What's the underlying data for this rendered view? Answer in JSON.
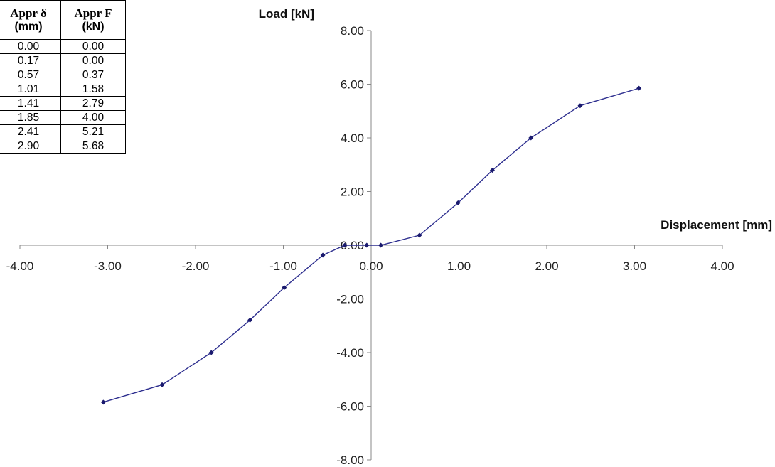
{
  "table": {
    "headers": [
      {
        "line1": "Appr δ",
        "line2": "(mm)"
      },
      {
        "line1": "Appr F",
        "line2": "(kN)"
      }
    ],
    "rows": [
      [
        "0.00",
        "0.00"
      ],
      [
        "0.17",
        "0.00"
      ],
      [
        "0.57",
        "0.37"
      ],
      [
        "1.01",
        "1.58"
      ],
      [
        "1.41",
        "2.79"
      ],
      [
        "1.85",
        "4.00"
      ],
      [
        "2.41",
        "5.21"
      ],
      [
        "2.90",
        "5.68"
      ]
    ]
  },
  "chart_data": {
    "type": "line",
    "xlabel": "Displacement [mm]",
    "ylabel": "Load [kN]",
    "xlim": [
      -4,
      4
    ],
    "ylim": [
      -8,
      8
    ],
    "x_ticks": [
      "-4.00",
      "-3.00",
      "-2.00",
      "-1.00",
      "0.00",
      "1.00",
      "2.00",
      "3.00",
      "4.00"
    ],
    "y_ticks": [
      "8.00",
      "6.00",
      "4.00",
      "2.00",
      "0.00",
      "-2.00",
      "-4.00",
      "-6.00",
      "-8.00"
    ],
    "grid": false,
    "legend": "none",
    "series": [
      {
        "color": "#2e2f8f",
        "marker_color": "#1a1a6e",
        "x": [
          -3.05,
          -2.38,
          -1.82,
          -1.38,
          -0.99,
          -0.55,
          -0.3,
          -0.05,
          0.11,
          0.55,
          0.99,
          1.38,
          1.82,
          2.38,
          3.05
        ],
        "y": [
          -5.85,
          -5.2,
          -4.0,
          -2.79,
          -1.58,
          -0.37,
          0.0,
          0.0,
          0.0,
          0.37,
          1.58,
          2.79,
          4.0,
          5.2,
          5.85
        ]
      }
    ]
  }
}
